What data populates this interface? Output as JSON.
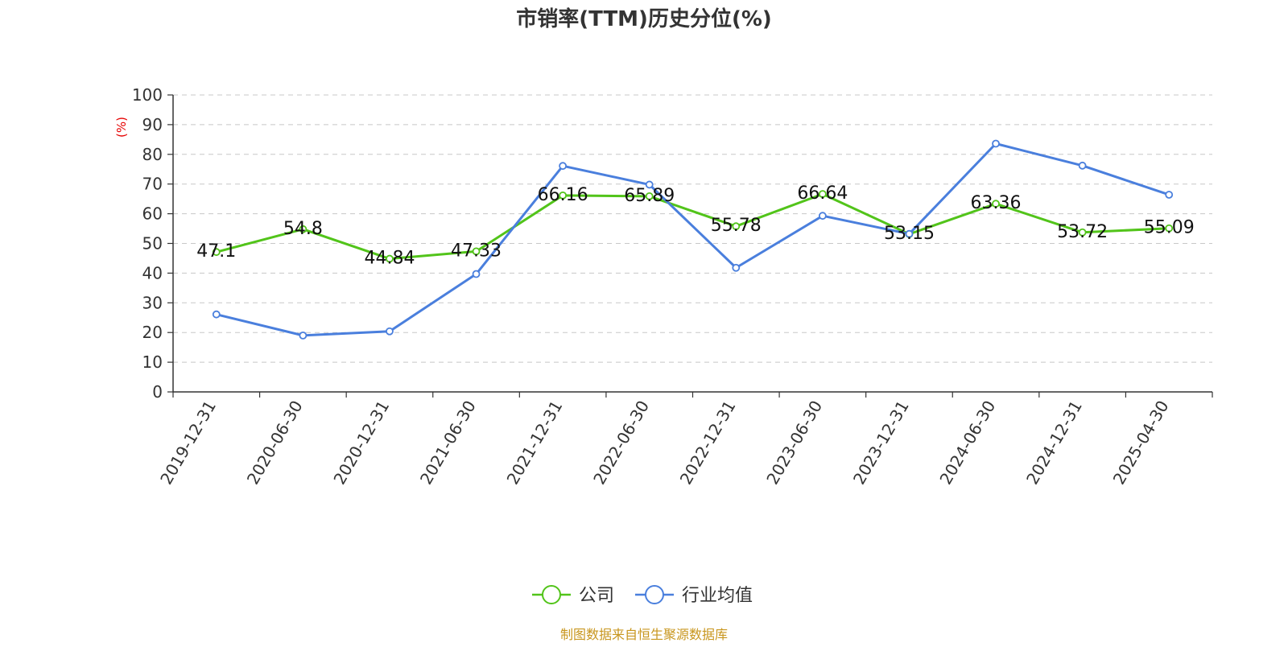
{
  "chart_data": {
    "type": "line",
    "title": "市销率(TTM)历史分位(%)",
    "ylabel": "(%)",
    "xlabel": "",
    "ylim": [
      0,
      100
    ],
    "yticks": [
      0,
      10,
      20,
      30,
      40,
      50,
      60,
      70,
      80,
      90,
      100
    ],
    "categories": [
      "2019-12-31",
      "2020-06-30",
      "2020-12-31",
      "2021-06-30",
      "2021-12-31",
      "2022-06-30",
      "2022-12-31",
      "2023-06-30",
      "2023-12-31",
      "2024-06-30",
      "2024-12-31",
      "2025-04-30"
    ],
    "series": [
      {
        "name": "公司",
        "color": "#52c41a",
        "values": [
          47.1,
          54.8,
          44.84,
          47.33,
          66.16,
          65.89,
          55.78,
          66.64,
          53.15,
          63.36,
          53.72,
          55.09
        ],
        "labels": [
          "47.1",
          "54.8",
          "44.84",
          "47.33",
          "66.16",
          "65.89",
          "55.78",
          "66.64",
          "53.15",
          "63.36",
          "53.72",
          "55.09"
        ]
      },
      {
        "name": "行业均值",
        "color": "#4a7fdd",
        "values": [
          26.1,
          19.0,
          20.4,
          39.7,
          76.1,
          69.8,
          41.8,
          59.3,
          53.2,
          83.6,
          76.2,
          66.4
        ]
      }
    ],
    "grid": true,
    "legend_position": "bottom-center"
  },
  "footer": {
    "source": "制图数据来自恒生聚源数据库",
    "source_color": "#c8961e"
  }
}
